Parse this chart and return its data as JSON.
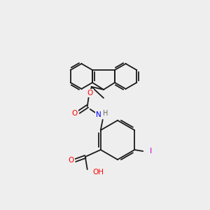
{
  "bg_color": "#eeeeee",
  "bond_color": "#1a1a1a",
  "atom_colors": {
    "O": "#ff0000",
    "N": "#0000ff",
    "I": "#cc00cc",
    "H": "#666666",
    "C": "#1a1a1a"
  },
  "font_size": 7.5,
  "lw": 1.3
}
